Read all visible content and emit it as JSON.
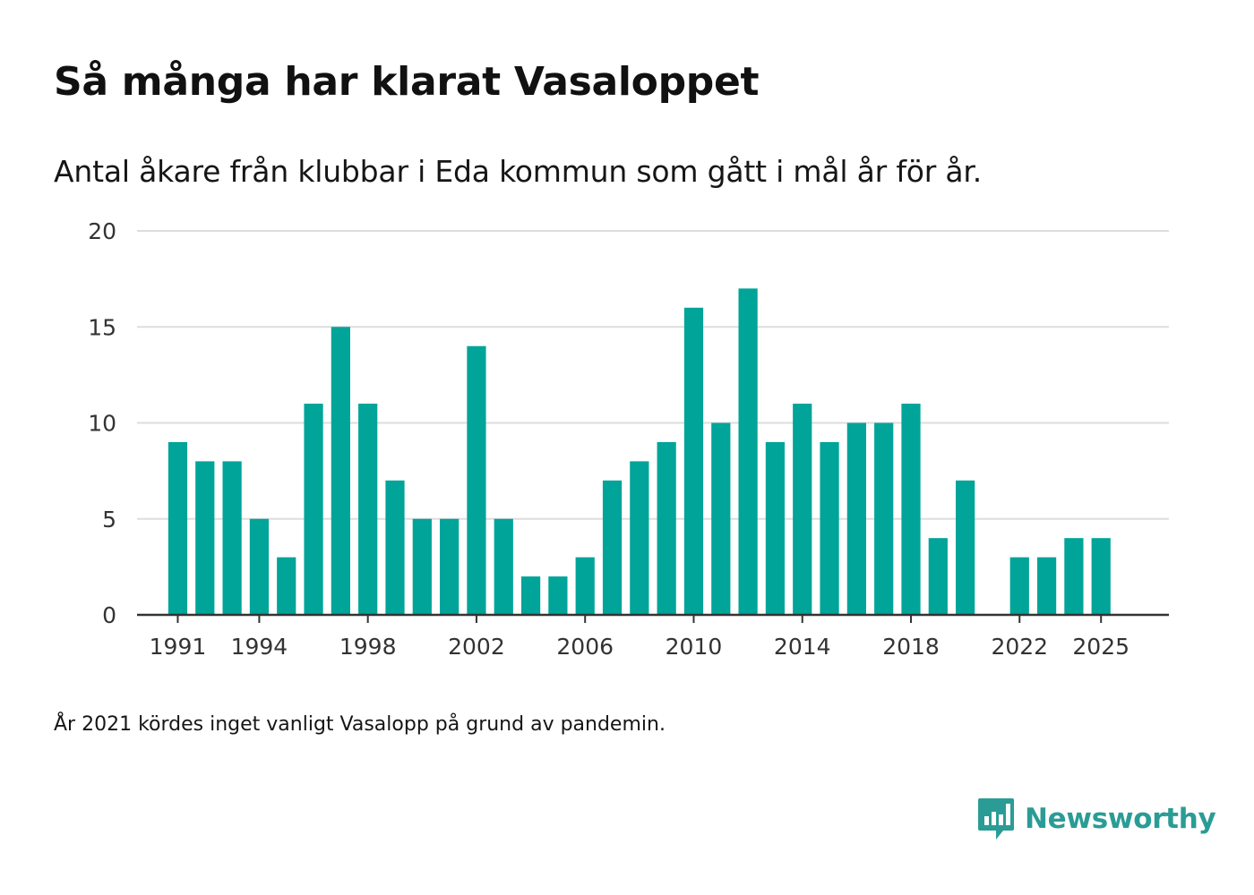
{
  "title": "Så många har klarat Vasaloppet",
  "subtitle": "Antal åkare från klubbar i Eda kommun som gått i mål år för år.",
  "footnote": "År 2021 kördes inget vanligt Vasalopp på grund av pandemin.",
  "brand": {
    "name": "Newsworthy",
    "color": "#2b9c95"
  },
  "colors": {
    "bar": "#00a499",
    "grid": "#dddddd",
    "axis": "#333333",
    "tick_text": "#333333"
  },
  "chart_data": {
    "type": "bar",
    "title": "Så många har klarat Vasaloppet",
    "xlabel": "",
    "ylabel": "",
    "ylim": [
      0,
      20
    ],
    "yticks": [
      0,
      5,
      10,
      15,
      20
    ],
    "xlim": [
      1989.5,
      2027.5
    ],
    "xticks": [
      1991,
      1994,
      1998,
      2002,
      2006,
      2010,
      2014,
      2018,
      2022,
      2025
    ],
    "grid": true,
    "categories": [
      1991,
      1992,
      1993,
      1994,
      1995,
      1996,
      1997,
      1998,
      1999,
      2000,
      2001,
      2002,
      2003,
      2004,
      2005,
      2006,
      2007,
      2008,
      2009,
      2010,
      2011,
      2012,
      2013,
      2014,
      2015,
      2016,
      2017,
      2018,
      2019,
      2020,
      2022,
      2023,
      2024,
      2025
    ],
    "values": [
      9,
      8,
      8,
      5,
      3,
      11,
      15,
      11,
      7,
      5,
      5,
      14,
      5,
      2,
      2,
      3,
      7,
      8,
      9,
      16,
      10,
      17,
      9,
      11,
      9,
      10,
      10,
      11,
      4,
      7,
      3,
      3,
      4,
      4
    ]
  }
}
